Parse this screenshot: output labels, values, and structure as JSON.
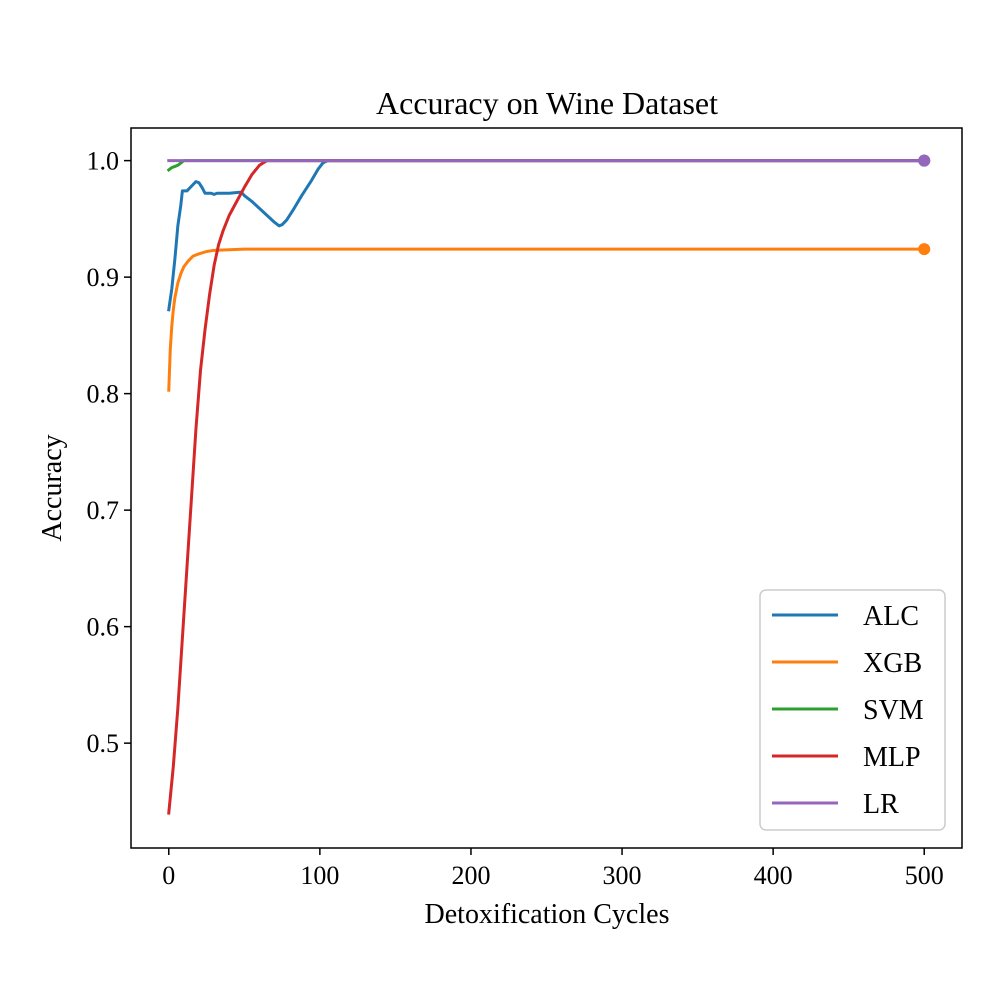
{
  "chart_data": {
    "type": "line",
    "title": "Accuracy on Wine Dataset",
    "xlabel": "Detoxification Cycles",
    "ylabel": "Accuracy",
    "xlim": [
      -25,
      525
    ],
    "ylim": [
      0.41,
      1.028
    ],
    "xticks": [
      0,
      100,
      200,
      300,
      400,
      500
    ],
    "xtick_labels": [
      "0",
      "100",
      "200",
      "300",
      "400",
      "500"
    ],
    "yticks": [
      0.5,
      0.6,
      0.7,
      0.8,
      0.9,
      1.0
    ],
    "ytick_labels": [
      "0.5",
      "0.6",
      "0.7",
      "0.8",
      "0.9",
      "1.0"
    ],
    "grid": false,
    "legend_position": "lower-right",
    "series": [
      {
        "name": "ALC",
        "color": "#1f77b4",
        "end_marker": true,
        "points": [
          [
            0,
            0.872
          ],
          [
            2,
            0.89
          ],
          [
            4,
            0.915
          ],
          [
            6,
            0.944
          ],
          [
            8,
            0.962
          ],
          [
            9,
            0.974
          ],
          [
            12,
            0.974
          ],
          [
            15,
            0.978
          ],
          [
            18,
            0.982
          ],
          [
            20,
            0.981
          ],
          [
            22,
            0.977
          ],
          [
            24,
            0.972
          ],
          [
            28,
            0.972
          ],
          [
            30,
            0.971
          ],
          [
            32,
            0.972
          ],
          [
            40,
            0.972
          ],
          [
            48,
            0.973
          ],
          [
            50,
            0.97
          ],
          [
            55,
            0.965
          ],
          [
            60,
            0.959
          ],
          [
            65,
            0.953
          ],
          [
            70,
            0.947
          ],
          [
            73,
            0.944
          ],
          [
            75,
            0.945
          ],
          [
            78,
            0.949
          ],
          [
            82,
            0.957
          ],
          [
            88,
            0.97
          ],
          [
            94,
            0.982
          ],
          [
            99,
            0.993
          ],
          [
            102,
            0.998
          ],
          [
            105,
            1.0
          ],
          [
            500,
            1.0
          ]
        ]
      },
      {
        "name": "XGB",
        "color": "#ff7f0e",
        "end_marker": true,
        "points": [
          [
            0,
            0.803
          ],
          [
            1,
            0.838
          ],
          [
            2,
            0.858
          ],
          [
            3,
            0.872
          ],
          [
            4,
            0.882
          ],
          [
            6,
            0.895
          ],
          [
            8,
            0.903
          ],
          [
            10,
            0.909
          ],
          [
            13,
            0.914
          ],
          [
            16,
            0.918
          ],
          [
            20,
            0.92
          ],
          [
            25,
            0.922
          ],
          [
            30,
            0.923
          ],
          [
            40,
            0.9235
          ],
          [
            50,
            0.924
          ],
          [
            500,
            0.924
          ]
        ]
      },
      {
        "name": "SVM",
        "color": "#2ca02c",
        "end_marker": false,
        "points": [
          [
            0,
            0.992
          ],
          [
            2,
            0.994
          ],
          [
            4,
            0.995
          ],
          [
            6,
            0.996
          ],
          [
            8,
            0.998
          ],
          [
            10,
            1.0
          ],
          [
            500,
            1.0
          ]
        ]
      },
      {
        "name": "MLP",
        "color": "#d62728",
        "end_marker": false,
        "points": [
          [
            0,
            0.44
          ],
          [
            3,
            0.48
          ],
          [
            6,
            0.53
          ],
          [
            9,
            0.59
          ],
          [
            12,
            0.65
          ],
          [
            15,
            0.71
          ],
          [
            18,
            0.77
          ],
          [
            21,
            0.82
          ],
          [
            24,
            0.855
          ],
          [
            27,
            0.885
          ],
          [
            30,
            0.91
          ],
          [
            33,
            0.928
          ],
          [
            36,
            0.94
          ],
          [
            40,
            0.953
          ],
          [
            45,
            0.965
          ],
          [
            50,
            0.977
          ],
          [
            55,
            0.988
          ],
          [
            60,
            0.996
          ],
          [
            65,
            1.0
          ],
          [
            500,
            1.0
          ]
        ]
      },
      {
        "name": "LR",
        "color": "#9467bd",
        "end_marker": true,
        "points": [
          [
            0,
            1.0
          ],
          [
            500,
            1.0
          ]
        ]
      }
    ]
  }
}
